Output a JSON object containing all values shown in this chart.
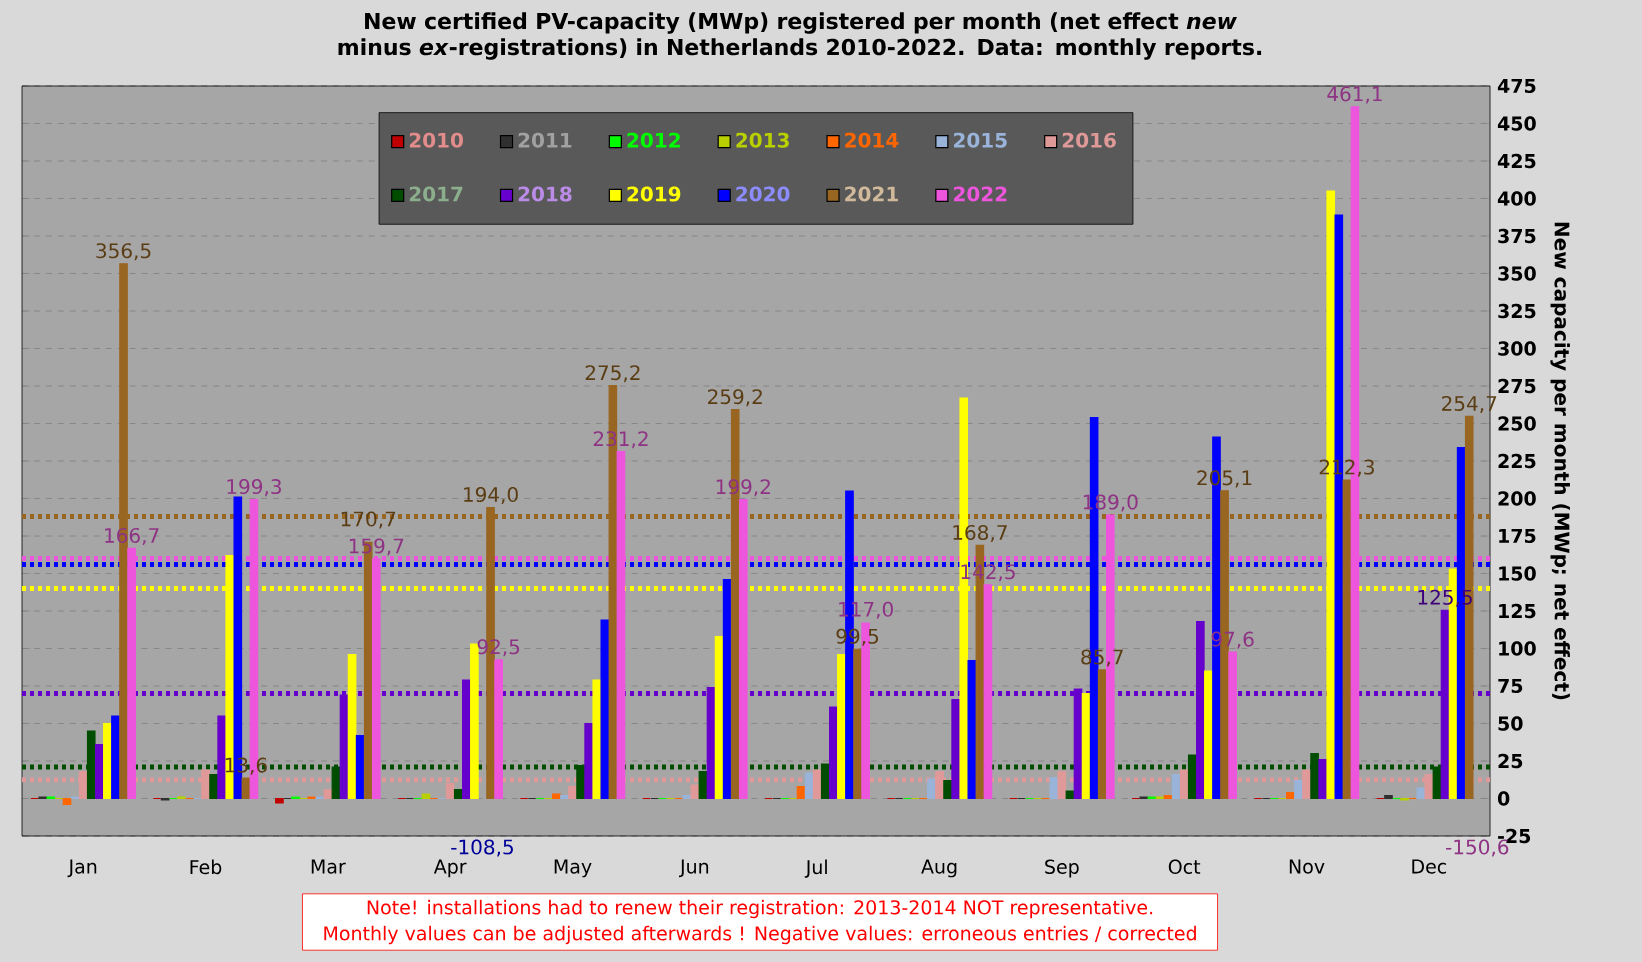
{
  "chart_data": {
    "type": "bar",
    "title": "New certified PV-capacity (MWp) registered per month (net effect *new* minus *ex*-registrations) in Netherlands 2010-2022. Data: monthly reports.",
    "ylabel": "New capacity per month (MWp; net effect)",
    "annotations": [
      "Note! installations had to renew their registration: 2013-2014 NOT representative.",
      "Monthly values can be adjusted afterwards ! Negative values: erroneous entries / corrected"
    ],
    "categories": [
      "Jan",
      "Feb",
      "Mar",
      "Apr",
      "May",
      "Jun",
      "Jul",
      "Aug",
      "Sep",
      "Oct",
      "Nov",
      "Dec"
    ],
    "series": [
      {
        "name": "2010",
        "color": "#c00000",
        "values": [
          0,
          0,
          -3,
          0,
          0,
          0,
          0,
          0,
          0,
          0,
          0,
          0
        ]
      },
      {
        "name": "2011",
        "color": "#303030",
        "values": [
          1,
          -1,
          0,
          0,
          0,
          0,
          0,
          0,
          0,
          1,
          0,
          2
        ]
      },
      {
        "name": "2012",
        "color": "#00ff00",
        "values": [
          1,
          0,
          1,
          0,
          0,
          0,
          0,
          0,
          0,
          1,
          0,
          0
        ]
      },
      {
        "name": "2013",
        "color": "#b8d000",
        "values": [
          0,
          1,
          0,
          3,
          0,
          0,
          0,
          0,
          0,
          1,
          0,
          -1
        ]
      },
      {
        "name": "2014",
        "color": "#ff6600",
        "values": [
          -4,
          0,
          1,
          0,
          3,
          0,
          8,
          0,
          0,
          2,
          4,
          0
        ]
      },
      {
        "name": "2015",
        "color": "#99b3d9",
        "values": [
          1,
          0,
          1,
          0,
          2,
          2,
          17,
          13,
          14,
          16,
          12,
          7
        ]
      },
      {
        "name": "2016",
        "color": "#e09999",
        "values": [
          18,
          19,
          6,
          10,
          8,
          9,
          19,
          18,
          18,
          19,
          19,
          16
        ]
      },
      {
        "name": "2017",
        "color": "#004d00",
        "values": [
          45,
          16,
          21,
          6,
          22,
          18,
          23,
          12,
          5,
          29,
          30,
          21
        ]
      },
      {
        "name": "2018",
        "color": "#6600cc",
        "values": [
          36,
          55,
          69,
          79,
          50,
          74,
          61,
          66,
          73,
          118,
          26,
          125.5
        ],
        "value_labels": [
          null,
          null,
          null,
          null,
          null,
          null,
          null,
          null,
          null,
          null,
          null,
          "125,5"
        ]
      },
      {
        "name": "2019",
        "color": "#ffff00",
        "values": [
          50,
          162,
          96,
          103,
          79,
          108,
          96,
          267,
          70,
          85,
          405,
          153
        ]
      },
      {
        "name": "2020",
        "color": "#0000ff",
        "values": [
          55,
          201,
          42,
          null,
          119,
          146,
          205,
          92,
          254,
          241,
          389,
          234
        ],
        "value_labels": [
          null,
          null,
          null,
          "-108,5",
          null,
          null,
          null,
          null,
          null,
          null,
          null,
          null
        ]
      },
      {
        "name": "2021",
        "color": "#996622",
        "values": [
          356.5,
          13.6,
          170.7,
          194.0,
          275.2,
          259.2,
          99.5,
          168.7,
          85.7,
          205.1,
          212.3,
          254.7
        ],
        "value_labels": [
          "356,5",
          "13,6",
          "170,7",
          "194,0",
          "275,2",
          "259,2",
          "99,5",
          "168,7",
          "85,7",
          "205,1",
          "212,3",
          "254,7"
        ]
      },
      {
        "name": "2022",
        "color": "#ee55dd",
        "values": [
          166.7,
          199.3,
          159.7,
          92.5,
          231.2,
          199.2,
          117.0,
          142.5,
          189.0,
          97.6,
          461.1,
          null
        ],
        "value_labels": [
          "166,7",
          "199,3",
          "159,7",
          "92,5",
          "231,2",
          "199,2",
          "117,0",
          "142,5",
          "189,0",
          "97,6",
          "461,1",
          "-150,6"
        ]
      }
    ],
    "ref_lines": [
      {
        "axis": "y",
        "value": 188,
        "color": "#996622",
        "line_style": "dotted"
      },
      {
        "axis": "y",
        "value": 160,
        "color": "#ee55dd",
        "line_style": "dotted"
      },
      {
        "axis": "y",
        "value": 156,
        "color": "#0000ff",
        "line_style": "dotted"
      },
      {
        "axis": "y",
        "value": 140,
        "color": "#ffff00",
        "line_style": "dotted"
      },
      {
        "axis": "y",
        "value": 70,
        "color": "#6600cc",
        "line_style": "dotted"
      },
      {
        "axis": "y",
        "value": 21,
        "color": "#004d00",
        "line_style": "dotted"
      },
      {
        "axis": "y",
        "value": 12.5,
        "color": "#e09999",
        "line_style": "dotted"
      }
    ],
    "ylim": [
      -25,
      475
    ],
    "yticks": [
      -25,
      0,
      25,
      50,
      75,
      100,
      125,
      150,
      175,
      200,
      225,
      250,
      275,
      300,
      325,
      350,
      375,
      400,
      425,
      450,
      475
    ],
    "grid": "y",
    "legend": "top"
  }
}
